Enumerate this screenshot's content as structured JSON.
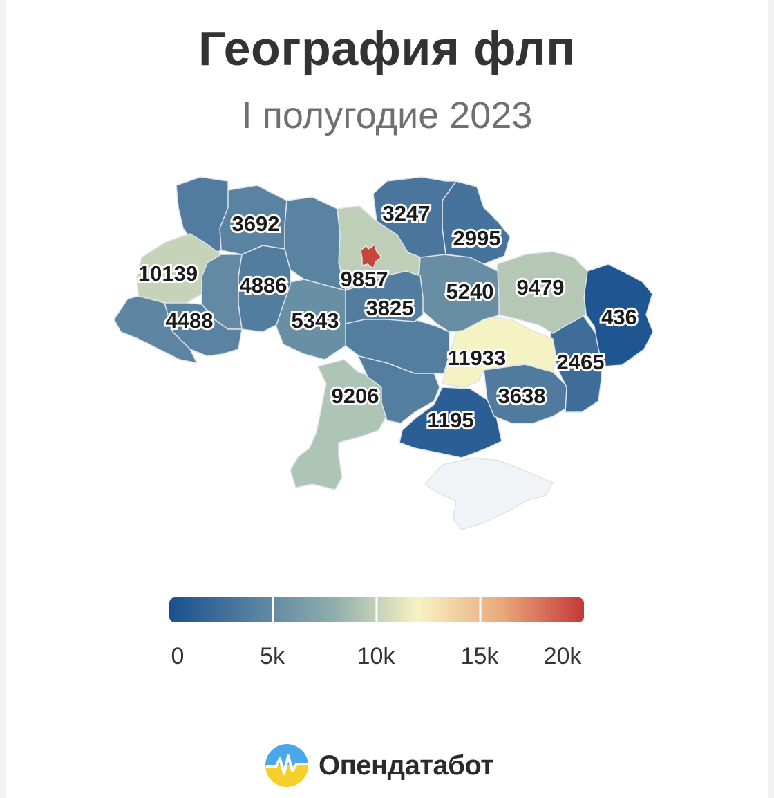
{
  "header": {
    "title": "География флп",
    "subtitle": "I полугодие 2023"
  },
  "map": {
    "regions": [
      {
        "id": "volyn",
        "value": 3692
      },
      {
        "id": "rivne",
        "value": null
      },
      {
        "id": "lviv",
        "value": 10139
      },
      {
        "id": "zakarpattia",
        "value": 4488
      },
      {
        "id": "ternopil",
        "value": 4886
      },
      {
        "id": "ivano-frankivsk",
        "value": null
      },
      {
        "id": "zhytomyr",
        "value": null
      },
      {
        "id": "khmelnytskyi",
        "value": null
      },
      {
        "id": "vinnytsia",
        "value": 5343
      },
      {
        "id": "kyiv-oblast",
        "value": 9857
      },
      {
        "id": "kyiv-city",
        "value": null
      },
      {
        "id": "chernihiv",
        "value": 3247
      },
      {
        "id": "sumy",
        "value": 2995
      },
      {
        "id": "poltava",
        "value": 5240
      },
      {
        "id": "cherkasy",
        "value": 3825
      },
      {
        "id": "kharkiv",
        "value": 9479
      },
      {
        "id": "luhansk",
        "value": 436
      },
      {
        "id": "donetsk",
        "value": 2465
      },
      {
        "id": "dnipropetrovsk",
        "value": 11933
      },
      {
        "id": "zaporizhzhia",
        "value": 3638
      },
      {
        "id": "kherson",
        "value": 1195
      },
      {
        "id": "mykolaiv",
        "value": null
      },
      {
        "id": "kirovohrad",
        "value": null
      },
      {
        "id": "odesa",
        "value": 9206
      },
      {
        "id": "crimea",
        "value": null
      }
    ],
    "colors": {
      "kyiv_city": "#c4473a",
      "no_data": "#f1f3f6",
      "border": "#dde3ea",
      "label": "#1a1a1a"
    }
  },
  "legend": {
    "ticks": [
      "0",
      "5k",
      "10k",
      "15k",
      "20k"
    ],
    "range": [
      0,
      20000
    ],
    "gradient": [
      "#18508f",
      "#567fa0",
      "#8fafad",
      "#f7f3c3",
      "#eaa97c",
      "#c4393a"
    ]
  },
  "brand": {
    "name": "Опендатабот",
    "logo_colors": {
      "top": "#4aa8e8",
      "bottom": "#f6cf2a",
      "line": "#ffffff"
    }
  }
}
